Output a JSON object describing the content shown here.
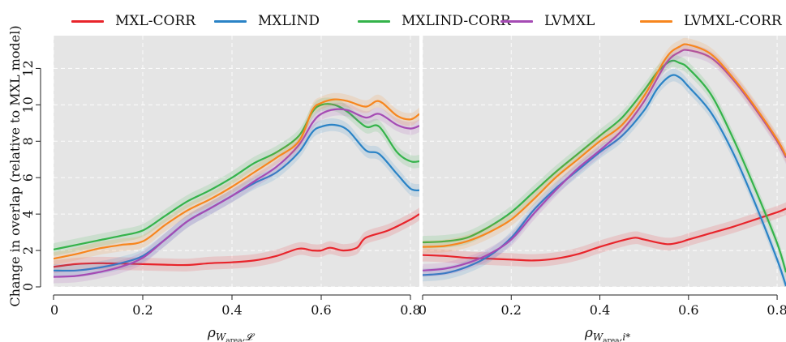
{
  "colors": {
    "MXL-CORR": "#e8242b",
    "MXLIND": "#2a83c6",
    "MXLIND-CORR": "#34b34a",
    "LVMXL": "#a54bb4",
    "LVMXL-CORR": "#f7861e"
  },
  "legend": [
    {
      "name": "MXL-CORR"
    },
    {
      "name": "MXLIND"
    },
    {
      "name": "MXLIND-CORR"
    },
    {
      "name": "LVMXL"
    },
    {
      "name": "LVMXL-CORR"
    }
  ],
  "ylabel": "Change in overlap (relative to MXL model)",
  "chart_data": [
    {
      "type": "line",
      "xlabel_main": "ρ",
      "xlabel_sub": "W",
      "xlabel_subsub": "area",
      "xlabel_tail": ",𝓛",
      "xlim": [
        0,
        0.82
      ],
      "ylim": [
        0,
        13.8
      ],
      "xticks": [
        0,
        0.2,
        0.4,
        0.6,
        0.8
      ],
      "xtick_labels": [
        "0",
        "0.2",
        "0.4",
        "0.6",
        "0.8"
      ],
      "yticks": [
        0,
        2,
        4,
        6,
        8,
        10,
        12
      ],
      "ytick_labels": [
        "0",
        "2",
        "4",
        "6",
        "8",
        "10",
        "12"
      ],
      "grid": true,
      "series": [
        {
          "name": "MXL-CORR",
          "x": [
            0,
            0.05,
            0.1,
            0.15,
            0.2,
            0.25,
            0.3,
            0.35,
            0.4,
            0.45,
            0.5,
            0.55,
            0.58,
            0.6,
            0.62,
            0.65,
            0.68,
            0.7,
            0.75,
            0.8,
            0.82
          ],
          "y": [
            1.1,
            1.25,
            1.3,
            1.28,
            1.25,
            1.22,
            1.2,
            1.3,
            1.35,
            1.45,
            1.7,
            2.1,
            2.0,
            2.0,
            2.15,
            2.0,
            2.15,
            2.7,
            3.1,
            3.7,
            4.0
          ]
        },
        {
          "name": "MXLIND",
          "x": [
            0,
            0.05,
            0.1,
            0.15,
            0.2,
            0.25,
            0.3,
            0.35,
            0.4,
            0.45,
            0.5,
            0.55,
            0.58,
            0.6,
            0.63,
            0.66,
            0.7,
            0.73,
            0.77,
            0.8,
            0.82
          ],
          "y": [
            0.9,
            0.9,
            1.05,
            1.3,
            1.7,
            2.6,
            3.6,
            4.3,
            5.0,
            5.7,
            6.3,
            7.4,
            8.5,
            8.8,
            8.9,
            8.6,
            7.5,
            7.3,
            6.2,
            5.4,
            5.3
          ]
        },
        {
          "name": "MXLIND-CORR",
          "x": [
            0,
            0.05,
            0.1,
            0.15,
            0.2,
            0.25,
            0.3,
            0.35,
            0.4,
            0.45,
            0.5,
            0.55,
            0.58,
            0.6,
            0.63,
            0.66,
            0.7,
            0.73,
            0.77,
            0.8,
            0.82
          ],
          "y": [
            2.05,
            2.3,
            2.55,
            2.8,
            3.1,
            3.9,
            4.7,
            5.3,
            6.0,
            6.8,
            7.4,
            8.3,
            9.6,
            10.0,
            10.0,
            9.6,
            8.8,
            8.8,
            7.4,
            6.9,
            6.9
          ]
        },
        {
          "name": "LVMXL",
          "x": [
            0,
            0.05,
            0.1,
            0.15,
            0.2,
            0.25,
            0.3,
            0.35,
            0.4,
            0.45,
            0.5,
            0.55,
            0.58,
            0.6,
            0.63,
            0.66,
            0.7,
            0.73,
            0.77,
            0.8,
            0.82
          ],
          "y": [
            0.55,
            0.6,
            0.8,
            1.1,
            1.6,
            2.6,
            3.6,
            4.3,
            5.0,
            5.8,
            6.6,
            7.8,
            9.0,
            9.5,
            9.75,
            9.7,
            9.3,
            9.5,
            8.9,
            8.7,
            8.85
          ]
        },
        {
          "name": "LVMXL-CORR",
          "x": [
            0,
            0.05,
            0.1,
            0.15,
            0.2,
            0.25,
            0.3,
            0.35,
            0.4,
            0.45,
            0.5,
            0.55,
            0.58,
            0.6,
            0.63,
            0.66,
            0.7,
            0.73,
            0.77,
            0.8,
            0.82
          ],
          "y": [
            1.55,
            1.8,
            2.1,
            2.3,
            2.5,
            3.4,
            4.2,
            4.8,
            5.5,
            6.3,
            7.1,
            8.0,
            9.7,
            10.1,
            10.3,
            10.2,
            9.9,
            10.2,
            9.4,
            9.2,
            9.5
          ]
        }
      ]
    },
    {
      "type": "line",
      "xlabel_main": "ρ",
      "xlabel_sub": "W",
      "xlabel_subsub": "area",
      "xlabel_tail": ",i*",
      "xlim": [
        0,
        0.82
      ],
      "ylim": [
        0,
        13.8
      ],
      "xticks": [
        0,
        0.2,
        0.4,
        0.6,
        0.8
      ],
      "xtick_labels": [
        "0",
        "0.2",
        "0.4",
        "0.6",
        "0.8"
      ],
      "grid": true,
      "series": [
        {
          "name": "MXL-CORR",
          "x": [
            0,
            0.05,
            0.1,
            0.15,
            0.2,
            0.25,
            0.3,
            0.35,
            0.4,
            0.45,
            0.48,
            0.5,
            0.55,
            0.58,
            0.6,
            0.65,
            0.7,
            0.75,
            0.8,
            0.82
          ],
          "y": [
            1.75,
            1.7,
            1.6,
            1.55,
            1.5,
            1.45,
            1.55,
            1.8,
            2.2,
            2.55,
            2.7,
            2.6,
            2.35,
            2.45,
            2.6,
            2.95,
            3.3,
            3.7,
            4.1,
            4.3
          ]
        },
        {
          "name": "MXLIND",
          "x": [
            0,
            0.05,
            0.1,
            0.15,
            0.2,
            0.25,
            0.3,
            0.35,
            0.4,
            0.45,
            0.5,
            0.53,
            0.56,
            0.58,
            0.6,
            0.65,
            0.7,
            0.75,
            0.8,
            0.82
          ],
          "y": [
            0.65,
            0.75,
            1.1,
            1.7,
            2.7,
            4.2,
            5.4,
            6.4,
            7.4,
            8.3,
            9.7,
            10.9,
            11.6,
            11.5,
            11.0,
            9.6,
            7.4,
            4.6,
            1.5,
            0.05
          ]
        },
        {
          "name": "MXLIND-CORR",
          "x": [
            0,
            0.05,
            0.1,
            0.15,
            0.2,
            0.25,
            0.3,
            0.35,
            0.4,
            0.45,
            0.5,
            0.53,
            0.56,
            0.58,
            0.6,
            0.65,
            0.7,
            0.75,
            0.8,
            0.82
          ],
          "y": [
            2.45,
            2.5,
            2.7,
            3.3,
            4.1,
            5.2,
            6.3,
            7.3,
            8.3,
            9.3,
            10.8,
            11.8,
            12.4,
            12.3,
            12.0,
            10.6,
            8.2,
            5.4,
            2.4,
            0.8
          ]
        },
        {
          "name": "LVMXL",
          "x": [
            0,
            0.05,
            0.1,
            0.15,
            0.2,
            0.25,
            0.3,
            0.35,
            0.4,
            0.45,
            0.5,
            0.55,
            0.58,
            0.6,
            0.65,
            0.7,
            0.75,
            0.8,
            0.82
          ],
          "y": [
            0.9,
            1.0,
            1.3,
            1.8,
            2.6,
            4.0,
            5.3,
            6.5,
            7.5,
            8.6,
            10.2,
            12.3,
            12.9,
            13.0,
            12.6,
            11.4,
            9.8,
            8.0,
            7.1
          ]
        },
        {
          "name": "LVMXL-CORR",
          "x": [
            0,
            0.05,
            0.1,
            0.15,
            0.2,
            0.25,
            0.3,
            0.35,
            0.4,
            0.45,
            0.5,
            0.55,
            0.58,
            0.6,
            0.65,
            0.7,
            0.75,
            0.8,
            0.82
          ],
          "y": [
            2.2,
            2.25,
            2.5,
            3.0,
            3.7,
            4.8,
            6.0,
            7.0,
            8.0,
            8.9,
            10.5,
            12.6,
            13.2,
            13.3,
            12.8,
            11.5,
            9.9,
            8.1,
            7.2
          ]
        }
      ]
    }
  ]
}
